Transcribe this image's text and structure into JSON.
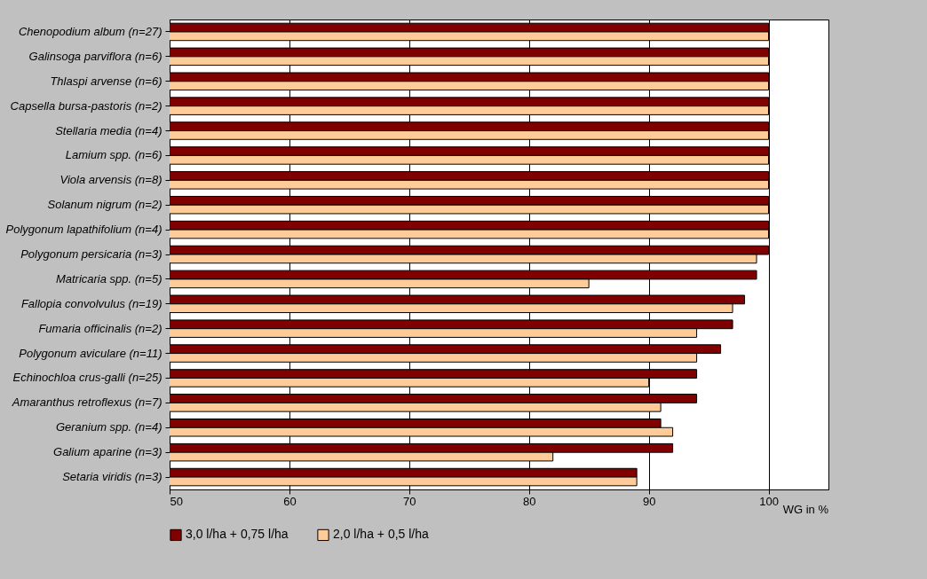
{
  "chart_data": {
    "type": "bar",
    "orientation": "horizontal",
    "xlabel": "WG in %",
    "categories": [
      "Chenopodium album (n=27)",
      "Galinsoga parviflora (n=6)",
      "Thlaspi arvense (n=6)",
      "Capsella bursa-pastoris (n=2)",
      "Stellaria media (n=4)",
      "Lamium spp. (n=6) ",
      "Viola arvensis (n=8)",
      "Solanum nigrum (n=2)",
      "Polygonum lapathifolium (n=4)",
      "Polygonum persicaria (n=3)",
      "Matricaria spp. (n=5)",
      "Fallopia convolvulus (n=19)",
      "Fumaria officinalis (n=2)",
      "Polygonum aviculare (n=11)",
      "Echinochloa crus-galli (n=25)",
      "Amaranthus retroflexus (n=7)",
      "Geranium spp. (n=4)",
      "Galium aparine (n=3)",
      "Setaria viridis (n=3)"
    ],
    "series": [
      {
        "name": "3,0 l/ha + 0,75 l/ha",
        "color": "#800000",
        "values": [
          100,
          100,
          100,
          100,
          100,
          100,
          100,
          100,
          100,
          100,
          99,
          98,
          97,
          96,
          94,
          94,
          91,
          92,
          89
        ]
      },
      {
        "name": "2,0 l/ha + 0,5 l/ha",
        "color": "#ffcc99",
        "values": [
          100,
          100,
          100,
          100,
          100,
          100,
          100,
          100,
          100,
          99,
          85,
          97,
          94,
          94,
          90,
          91,
          92,
          82,
          89
        ]
      }
    ],
    "xlim": [
      50,
      105
    ],
    "xticks": [
      50,
      60,
      70,
      80,
      90,
      100
    ],
    "grid": "x",
    "legend": "bottom"
  }
}
